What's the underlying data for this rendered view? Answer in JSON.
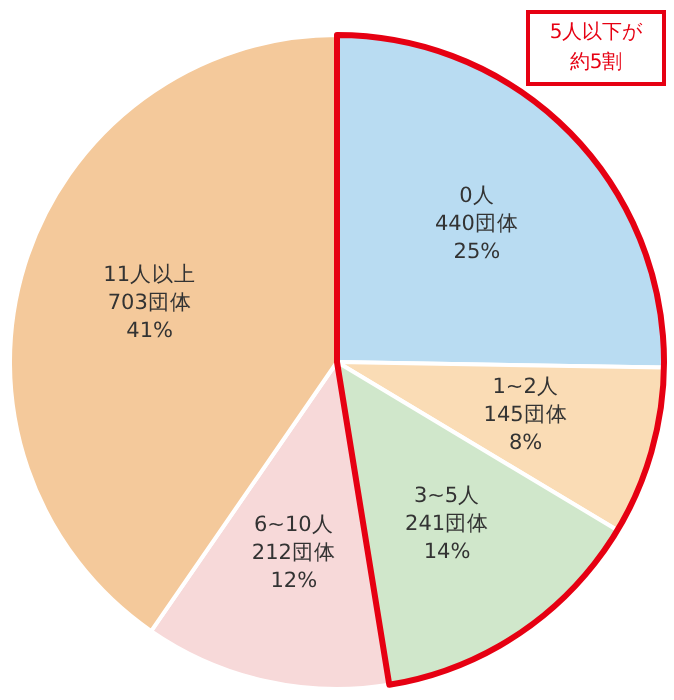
{
  "chart_data": {
    "type": "pie",
    "categories": [
      "0人",
      "1~2人",
      "3~5人",
      "6~10人",
      "11人以上"
    ],
    "values": [
      440,
      145,
      241,
      212,
      703
    ],
    "value_labels": [
      "440団体\n25%",
      "145団体\n8%",
      "241団体\n14%",
      "212団体\n12%",
      "703団体\n41%"
    ],
    "colors": [
      "#b9dcf2",
      "#fadcb5",
      "#d0e7cb",
      "#f7d9d9",
      "#f4c99b"
    ],
    "annotations": [
      "5人以下が約5割"
    ],
    "legend": false
  }
}
